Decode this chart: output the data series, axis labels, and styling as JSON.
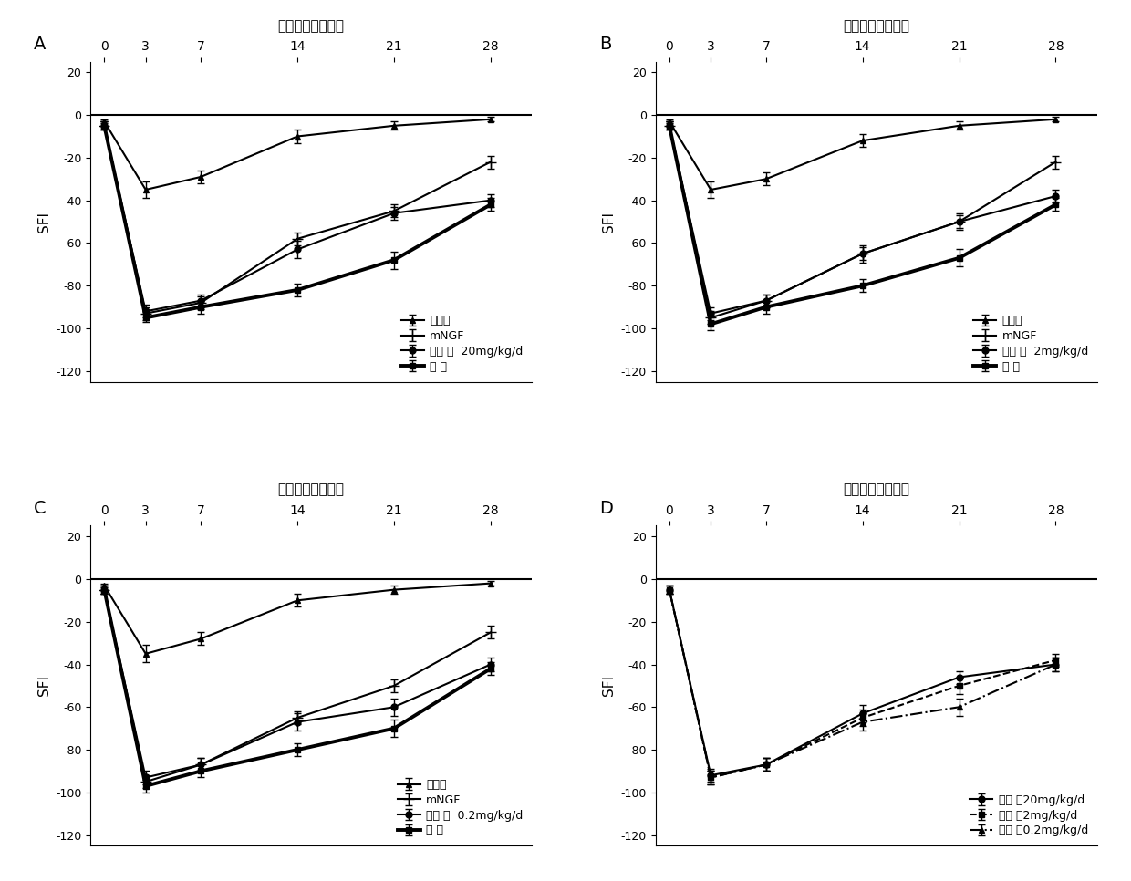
{
  "x": [
    0,
    3,
    7,
    14,
    21,
    28
  ],
  "xlabel": "损伤后时间（天）",
  "ylabel": "SFI",
  "ylim": [
    -120,
    20
  ],
  "panel_labels": [
    "A",
    "B",
    "C",
    "D"
  ],
  "panels": [
    {
      "title": "A",
      "legend_label_drug": "槲皮 素  20mg/kg/d",
      "series": {
        "drug": {
          "y": [
            -5,
            -92,
            -87,
            -63,
            -46,
            -40
          ],
          "yerr": [
            2,
            3,
            3,
            4,
            3,
            3
          ]
        },
        "model": {
          "y": [
            -5,
            -95,
            -90,
            -82,
            -68,
            -42
          ],
          "yerr": [
            2,
            2,
            3,
            3,
            4,
            3
          ]
        },
        "sham": {
          "y": [
            -3,
            -35,
            -29,
            -10,
            -5,
            -2
          ],
          "yerr": [
            1,
            4,
            3,
            3,
            2,
            1
          ]
        },
        "mNGF": {
          "y": [
            -5,
            -93,
            -88,
            -58,
            -45,
            -22
          ],
          "yerr": [
            2,
            3,
            3,
            3,
            3,
            3
          ]
        }
      }
    },
    {
      "title": "B",
      "legend_label_drug": "槲皮 素  2mg/kg/d",
      "series": {
        "drug": {
          "y": [
            -5,
            -93,
            -87,
            -65,
            -50,
            -38
          ],
          "yerr": [
            2,
            3,
            3,
            4,
            4,
            3
          ]
        },
        "model": {
          "y": [
            -5,
            -98,
            -90,
            -80,
            -67,
            -42
          ],
          "yerr": [
            2,
            3,
            3,
            3,
            4,
            3
          ]
        },
        "sham": {
          "y": [
            -3,
            -35,
            -30,
            -12,
            -5,
            -2
          ],
          "yerr": [
            1,
            4,
            3,
            3,
            2,
            1
          ]
        },
        "mNGF": {
          "y": [
            -5,
            -95,
            -87,
            -65,
            -50,
            -22
          ],
          "yerr": [
            2,
            3,
            3,
            3,
            3,
            3
          ]
        }
      }
    },
    {
      "title": "C",
      "legend_label_drug": "槲皮 素  0.2mg/kg/d",
      "series": {
        "drug": {
          "y": [
            -5,
            -93,
            -87,
            -67,
            -60,
            -40
          ],
          "yerr": [
            2,
            3,
            3,
            4,
            4,
            3
          ]
        },
        "model": {
          "y": [
            -5,
            -97,
            -90,
            -80,
            -70,
            -42
          ],
          "yerr": [
            2,
            3,
            3,
            3,
            4,
            3
          ]
        },
        "sham": {
          "y": [
            -3,
            -35,
            -28,
            -10,
            -5,
            -2
          ],
          "yerr": [
            1,
            4,
            3,
            3,
            2,
            1
          ]
        },
        "mNGF": {
          "y": [
            -5,
            -95,
            -87,
            -65,
            -50,
            -25
          ],
          "yerr": [
            2,
            3,
            3,
            3,
            3,
            3
          ]
        }
      }
    },
    {
      "title": "D",
      "series": {
        "drug20": {
          "y": [
            -5,
            -92,
            -87,
            -63,
            -46,
            -40
          ],
          "yerr": [
            2,
            3,
            3,
            4,
            3,
            3
          ]
        },
        "drug2": {
          "y": [
            -5,
            -93,
            -87,
            -65,
            -50,
            -38
          ],
          "yerr": [
            2,
            3,
            3,
            4,
            4,
            3
          ]
        },
        "drug02": {
          "y": [
            -5,
            -93,
            -87,
            -67,
            -60,
            -40
          ],
          "yerr": [
            2,
            3,
            3,
            4,
            4,
            3
          ]
        }
      }
    }
  ],
  "line_styles": {
    "drug": {
      "color": "#000000",
      "marker": "o",
      "linestyle": "-",
      "linewidth": 1.5,
      "markersize": 5
    },
    "model": {
      "color": "#000000",
      "marker": "s",
      "linestyle": "-",
      "linewidth": 2.8,
      "markersize": 5
    },
    "sham": {
      "color": "#000000",
      "marker": "^",
      "linestyle": "-",
      "linewidth": 1.5,
      "markersize": 5
    },
    "mNGF": {
      "color": "#000000",
      "marker": "+",
      "linestyle": "-",
      "linewidth": 1.5,
      "markersize": 8
    },
    "drug20": {
      "color": "#000000",
      "marker": "o",
      "linestyle": "-",
      "linewidth": 1.5,
      "markersize": 5
    },
    "drug2": {
      "color": "#000000",
      "marker": "s",
      "linestyle": "--",
      "linewidth": 1.5,
      "markersize": 5
    },
    "drug02": {
      "color": "#000000",
      "marker": "^",
      "linestyle": "-.",
      "linewidth": 1.5,
      "markersize": 5
    }
  }
}
